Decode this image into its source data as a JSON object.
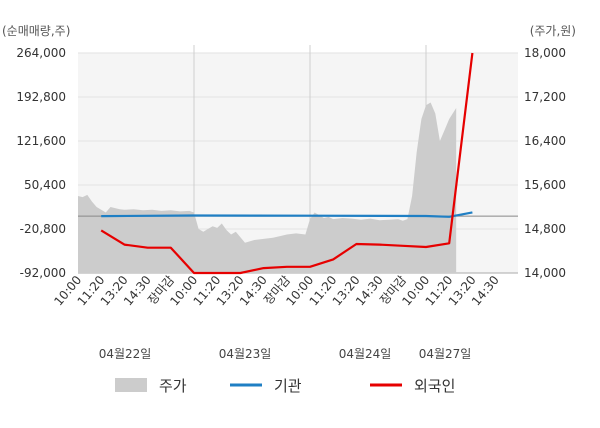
{
  "chart_data": {
    "type": "line",
    "left_axis": {
      "unit_label": "(순매매량,주)",
      "ticks": [
        "264,000",
        "192,800",
        "121,600",
        "50,400",
        "-20,800",
        "-92,000"
      ],
      "ylim": [
        -92000,
        264000
      ]
    },
    "right_axis": {
      "unit_label": "(주가,원)",
      "ticks": [
        "18,000",
        "17,200",
        "16,400",
        "15,600",
        "14,800",
        "14,000"
      ],
      "ylim": [
        14000,
        18000
      ]
    },
    "x_tick_labels": [
      "10:00",
      "11:20",
      "13:20",
      "14:30",
      "장마감",
      "10:00",
      "11:20",
      "13:20",
      "14:30",
      "장마감",
      "10:00",
      "11:20",
      "13:20",
      "14:30",
      "장마감",
      "10:00",
      "11:20",
      "13:20",
      "14:30"
    ],
    "market_close_label": "장마감",
    "date_labels": [
      "04월22일",
      "04월23일",
      "04월24일",
      "04월27일"
    ],
    "series": [
      {
        "name": "주가",
        "kind": "area",
        "color": "#cccccc",
        "axis": "right",
        "x": [
          0,
          0.2,
          0.4,
          0.6,
          0.8,
          1,
          1.2,
          1.4,
          1.6,
          1.8,
          2,
          2.4,
          2.8,
          3.2,
          3.6,
          4,
          4.4,
          4.8,
          5,
          5.2,
          5.4,
          5.6,
          5.8,
          6,
          6.2,
          6.4,
          6.6,
          6.8,
          7,
          7.2,
          7.6,
          8,
          8.4,
          8.8,
          9,
          9.4,
          9.8,
          10,
          10.2,
          10.4,
          10.6,
          10.8,
          11,
          11.4,
          11.8,
          12.2,
          12.6,
          13,
          13.4,
          13.8,
          14,
          14.2,
          14.4,
          14.6,
          14.8,
          15,
          15.2,
          15.4,
          15.6,
          15.8,
          16,
          16.3
        ],
        "values": [
          15400,
          15380,
          15420,
          15300,
          15200,
          15150,
          15100,
          15200,
          15180,
          15160,
          15150,
          15160,
          15140,
          15150,
          15130,
          15140,
          15120,
          15130,
          15100,
          14800,
          14750,
          14800,
          14850,
          14820,
          14900,
          14780,
          14700,
          14750,
          14650,
          14550,
          14600,
          14620,
          14640,
          14680,
          14700,
          14720,
          14700,
          14980,
          15100,
          15050,
          15000,
          15020,
          14980,
          15000,
          14990,
          14970,
          14990,
          14960,
          14970,
          14980,
          14950,
          14980,
          15400,
          16200,
          16800,
          17050,
          17100,
          16900,
          16400,
          16600,
          16800,
          17000
        ]
      },
      {
        "name": "기관",
        "kind": "line",
        "color": "#1f7fc4",
        "axis": "left",
        "x": [
          1,
          5,
          10,
          15,
          16,
          17
        ],
        "values": [
          0,
          1000,
          800,
          200,
          -1000,
          6000
        ]
      },
      {
        "name": "외국인",
        "kind": "line",
        "color": "#e60000",
        "axis": "left",
        "x": [
          1,
          2,
          3,
          4,
          5,
          6,
          7,
          8,
          9,
          10,
          11,
          12,
          13,
          14,
          15,
          16,
          17
        ],
        "values": [
          -23000,
          -46000,
          -51000,
          -51000,
          -92000,
          -92000,
          -92000,
          -84000,
          -82000,
          -82000,
          -70000,
          -45000,
          -46000,
          -48000,
          -50000,
          -44000,
          264000
        ]
      }
    ],
    "legend": {
      "placement": "bottom",
      "items": [
        {
          "name": "주가",
          "color": "#cccccc",
          "shape": "box"
        },
        {
          "name": "기관",
          "color": "#1f7fc4",
          "shape": "line"
        },
        {
          "name": "외국인",
          "color": "#e60000",
          "shape": "line"
        }
      ]
    },
    "grid": true
  }
}
